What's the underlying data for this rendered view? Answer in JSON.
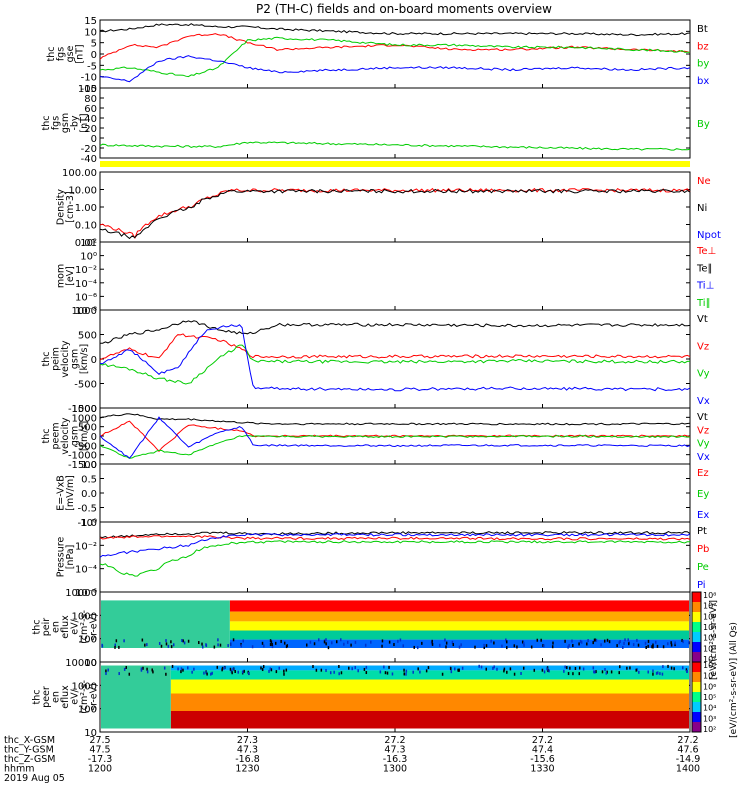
{
  "title": "P2 (TH-C) fields and on-board moments overview",
  "colors": {
    "black": "#000000",
    "red": "#ff0000",
    "green": "#00cc00",
    "blue": "#0000ff",
    "yellow": "#ffff00"
  },
  "chart_data": {
    "type": "line",
    "x_range": [
      "2019-08-05 12:00",
      "2019-08-05 14:00"
    ],
    "panels": [
      {
        "id": "fgs-gse",
        "ylabel": [
          "thc",
          "fgs",
          "gse",
          "[nT]"
        ],
        "yticks": [
          "15",
          "10",
          "5",
          "0",
          "-5",
          "-10",
          "-15"
        ],
        "ylim": [
          -15,
          15
        ],
        "legend": [
          {
            "name": "Bt",
            "color": "black"
          },
          {
            "name": "bz",
            "color": "red"
          },
          {
            "name": "by",
            "color": "green"
          },
          {
            "name": "bx",
            "color": "blue"
          }
        ],
        "series": [
          {
            "name": "Bt",
            "color": "black",
            "x": [
              0,
              0.05,
              0.1,
              0.15,
              0.2,
              0.25,
              0.3,
              0.4,
              0.5,
              0.6,
              0.7,
              0.8,
              0.9,
              1
            ],
            "y": [
              10,
              11,
              13,
              13,
              12,
              12,
              11,
              10,
              9,
              9,
              9,
              9,
              8.5,
              9
            ]
          },
          {
            "name": "bz",
            "color": "red",
            "x": [
              0,
              0.05,
              0.1,
              0.15,
              0.2,
              0.25,
              0.3,
              0.4,
              0.5,
              0.6,
              0.7,
              0.8,
              0.9,
              1
            ],
            "y": [
              -2,
              4,
              3,
              8,
              9,
              5,
              2,
              3,
              4,
              2,
              2,
              3,
              2,
              1
            ]
          },
          {
            "name": "by",
            "color": "green",
            "x": [
              0,
              0.05,
              0.1,
              0.15,
              0.2,
              0.25,
              0.3,
              0.4,
              0.5,
              0.6,
              0.7,
              0.8,
              0.9,
              1
            ],
            "y": [
              -7,
              -6,
              -8,
              -10,
              -6,
              6,
              7,
              6,
              4,
              4,
              3,
              3,
              2,
              1
            ]
          },
          {
            "name": "bx",
            "color": "blue",
            "x": [
              0,
              0.05,
              0.1,
              0.15,
              0.2,
              0.25,
              0.3,
              0.4,
              0.5,
              0.6,
              0.7,
              0.8,
              0.9,
              1
            ],
            "y": [
              -10,
              -12,
              -3,
              -1,
              -3,
              -6,
              -8,
              -7,
              -6,
              -6,
              -7,
              -6,
              -7,
              -6
            ]
          }
        ]
      },
      {
        "id": "fgs-gsm-by",
        "ylabel": [
          "thc",
          "fgs",
          "gsm",
          "-by",
          "[nT]"
        ],
        "yticks": [
          "100",
          "80",
          "60",
          "40",
          "20",
          "0",
          "-20",
          "-40"
        ],
        "ylim": [
          -60,
          100
        ],
        "legend": [
          {
            "name": "By",
            "color": "green"
          }
        ],
        "series": [
          {
            "name": "By",
            "color": "green",
            "x": [
              0,
              0.1,
              0.2,
              0.25,
              0.3,
              0.5,
              0.7,
              0.9,
              1
            ],
            "y": [
              -30,
              -33,
              -34,
              -24,
              -25,
              -30,
              -35,
              -40,
              -40
            ]
          }
        ]
      },
      {
        "id": "density",
        "ylabel": [
          "Density",
          "[cm-3]"
        ],
        "yticks": [
          "100.00",
          "10.00",
          "1.00",
          "0.10",
          "0.01"
        ],
        "log": true,
        "ylim": [
          0.01,
          100
        ],
        "legend": [
          {
            "name": "Ne",
            "color": "red"
          },
          {
            "name": "Ni",
            "color": "black"
          },
          {
            "name": "Npot",
            "color": "blue"
          }
        ],
        "series": [
          {
            "name": "Ne",
            "color": "red",
            "x": [
              0,
              0.03,
              0.06,
              0.08,
              0.12,
              0.16,
              0.2,
              0.22,
              1
            ],
            "y": [
              0.1,
              0.05,
              0.02,
              0.1,
              0.5,
              1.2,
              5,
              9,
              9
            ]
          },
          {
            "name": "Ni",
            "color": "black",
            "x": [
              0,
              0.03,
              0.06,
              0.08,
              0.12,
              0.16,
              0.2,
              0.22,
              1
            ],
            "y": [
              0.05,
              0.03,
              0.015,
              0.06,
              0.4,
              1,
              5,
              8,
              8
            ]
          }
        ]
      },
      {
        "id": "mom-temp",
        "ylabel": [
          "mom",
          "[eV]"
        ],
        "yticks": [
          "10²",
          "10⁰",
          "10⁻²",
          "10⁻⁴",
          "10⁻⁶",
          "10⁻⁸"
        ],
        "legend": [
          {
            "name": "Te⊥",
            "color": "red"
          },
          {
            "name": "Te∥",
            "color": "black"
          },
          {
            "name": "Ti⊥",
            "color": "blue"
          },
          {
            "name": "Ti∥",
            "color": "green"
          }
        ]
      },
      {
        "id": "peim-velocity",
        "ylabel": [
          "thc",
          "peim",
          "velocity",
          "gsm",
          "[km/s]"
        ],
        "yticks": [
          "1000",
          "500",
          "0",
          "-500",
          "-1000"
        ],
        "ylim": [
          -1000,
          1000
        ],
        "legend": [
          {
            "name": "Vt",
            "color": "black"
          },
          {
            "name": "Vz",
            "color": "red"
          },
          {
            "name": "Vy",
            "color": "green"
          },
          {
            "name": "Vx",
            "color": "blue"
          }
        ],
        "series": [
          {
            "name": "Vt",
            "color": "black",
            "x": [
              0,
              0.05,
              0.1,
              0.15,
              0.2,
              0.25,
              0.3,
              0.5,
              0.7,
              1
            ],
            "y": [
              300,
              500,
              600,
              800,
              600,
              500,
              700,
              700,
              680,
              700
            ]
          },
          {
            "name": "Vz",
            "color": "red",
            "x": [
              0,
              0.05,
              0.1,
              0.13,
              0.2,
              0.24,
              0.26,
              0.5,
              0.7,
              1
            ],
            "y": [
              0,
              200,
              0,
              500,
              400,
              200,
              50,
              50,
              60,
              50
            ]
          },
          {
            "name": "Vy",
            "color": "green",
            "x": [
              0,
              0.05,
              0.1,
              0.15,
              0.2,
              0.24,
              0.26,
              0.5,
              0.7,
              1
            ],
            "y": [
              -100,
              -200,
              -400,
              -500,
              0,
              300,
              -50,
              -60,
              -40,
              -60
            ]
          },
          {
            "name": "Vx",
            "color": "blue",
            "x": [
              0,
              0.05,
              0.1,
              0.13,
              0.18,
              0.24,
              0.26,
              0.5,
              0.7,
              1
            ],
            "y": [
              -100,
              200,
              -300,
              -200,
              600,
              700,
              -600,
              -620,
              -600,
              -620
            ]
          }
        ]
      },
      {
        "id": "peem-velocity",
        "ylabel": [
          "thc",
          "peem",
          "velocity",
          "gsm",
          "[km/s]"
        ],
        "yticks": [
          "1500",
          "1000",
          "500",
          "0",
          "-500",
          "-1000",
          "-1500"
        ],
        "ylim": [
          -1500,
          1500
        ],
        "legend": [
          {
            "name": "Vt",
            "color": "black"
          },
          {
            "name": "Vz",
            "color": "red"
          },
          {
            "name": "Vy",
            "color": "green"
          },
          {
            "name": "Vx",
            "color": "blue"
          }
        ],
        "series": [
          {
            "name": "Vt",
            "color": "black",
            "x": [
              0,
              0.05,
              0.1,
              0.15,
              0.2,
              0.25,
              0.3,
              0.5,
              0.7,
              1
            ],
            "y": [
              1000,
              1200,
              900,
              900,
              800,
              700,
              650,
              650,
              640,
              650
            ]
          },
          {
            "name": "Vz",
            "color": "red",
            "x": [
              0,
              0.05,
              0.1,
              0.15,
              0.2,
              0.24,
              0.26,
              0.5,
              0.7,
              1
            ],
            "y": [
              0,
              800,
              -800,
              600,
              400,
              300,
              0,
              0,
              10,
              0
            ]
          },
          {
            "name": "Vy",
            "color": "green",
            "x": [
              0,
              0.05,
              0.1,
              0.15,
              0.2,
              0.24,
              0.26,
              0.5,
              0.7,
              1
            ],
            "y": [
              -500,
              -1200,
              -800,
              -1000,
              -400,
              0,
              -30,
              -40,
              -20,
              -40
            ]
          },
          {
            "name": "Vx",
            "color": "blue",
            "x": [
              0,
              0.05,
              0.1,
              0.15,
              0.2,
              0.24,
              0.26,
              0.5,
              0.7,
              1
            ],
            "y": [
              0,
              -1200,
              1000,
              -600,
              200,
              500,
              -500,
              -520,
              -500,
              -520
            ]
          }
        ]
      },
      {
        "id": "e-field",
        "ylabel": [
          "E=-VxB",
          "[mV/m]"
        ],
        "yticks": [
          "1.0",
          "0.5",
          "0.0",
          "-0.5",
          "-1.0"
        ],
        "ylim": [
          -1,
          1
        ],
        "legend": [
          {
            "name": "Ez",
            "color": "red"
          },
          {
            "name": "Ey",
            "color": "green"
          },
          {
            "name": "Ex",
            "color": "blue"
          }
        ]
      },
      {
        "id": "pressure",
        "ylabel": [
          "Pressure",
          "[nPa]"
        ],
        "yticks": [
          "10⁰",
          "10⁻²",
          "10⁻⁴",
          "10⁻⁶"
        ],
        "log": true,
        "ylim": [
          1e-06,
          1
        ],
        "legend": [
          {
            "name": "Pt",
            "color": "black"
          },
          {
            "name": "Pb",
            "color": "red"
          },
          {
            "name": "Pe",
            "color": "green"
          },
          {
            "name": "Pi",
            "color": "blue"
          }
        ],
        "series": [
          {
            "name": "Pt",
            "color": "black",
            "x": [
              0,
              0.05,
              0.1,
              0.15,
              0.2,
              0.25,
              0.3,
              0.5,
              1
            ],
            "y": [
              0.05,
              0.06,
              0.1,
              0.1,
              0.12,
              0.1,
              0.1,
              0.12,
              0.12
            ]
          },
          {
            "name": "Pb",
            "color": "red",
            "x": [
              0,
              0.05,
              0.1,
              0.15,
              0.2,
              0.25,
              0.3,
              0.5,
              1
            ],
            "y": [
              0.04,
              0.05,
              0.06,
              0.06,
              0.05,
              0.04,
              0.04,
              0.04,
              0.035
            ]
          },
          {
            "name": "Pe",
            "color": "green",
            "x": [
              0,
              0.03,
              0.06,
              0.1,
              0.15,
              0.2,
              0.25,
              1
            ],
            "y": [
              0.0003,
              5e-05,
              2e-05,
              0.0001,
              0.001,
              0.01,
              0.02,
              0.02
            ]
          },
          {
            "name": "Pi",
            "color": "blue",
            "x": [
              0,
              0.03,
              0.06,
              0.1,
              0.15,
              0.2,
              0.25,
              1
            ],
            "y": [
              0.001,
              0.002,
              0.003,
              0.005,
              0.01,
              0.05,
              0.08,
              0.08
            ]
          }
        ]
      },
      {
        "id": "peir-eflux",
        "type": "heatmap",
        "ylabel": [
          "thc",
          "peir",
          "en",
          "eflux",
          "eV/",
          "(cm²-s-",
          "sr-eV)"
        ],
        "yticks": [
          "10000",
          "1000",
          "100",
          "10"
        ],
        "log": true
      },
      {
        "id": "peer-eflux",
        "type": "heatmap",
        "ylabel": [
          "thc",
          "peer",
          "en",
          "eflux",
          "eV/",
          "(cm²-s-",
          "sr-eV)"
        ],
        "yticks": [
          "10000",
          "1000",
          "100",
          "10"
        ],
        "log": true
      }
    ],
    "colorbar": {
      "label": "[eV/(cm²-s-sr-eV)] (All Qs)",
      "label_overlap": "[eV/(cm²-s-sr-eV)]",
      "ticks_top": [
        "10⁸",
        "10⁷",
        "10⁶",
        "10⁵",
        "10⁴",
        "10³",
        "10²"
      ],
      "ticks_bottom": [
        "10⁸",
        "10⁷",
        "10⁶",
        "10⁵",
        "10⁴",
        "10³",
        "10²"
      ]
    },
    "x_axis": {
      "row_labels": [
        "thc_X-GSM",
        "thc_Y-GSM",
        "thc_Z-GSM",
        "hhmm",
        "2019 Aug 05"
      ],
      "columns": [
        {
          "x": "27.5",
          "y": "47.5",
          "z": "-17.3",
          "t": "1200"
        },
        {
          "x": "27.3",
          "y": "47.3",
          "z": "-16.8",
          "t": "1230"
        },
        {
          "x": "27.2",
          "y": "47.3",
          "z": "-16.3",
          "t": "1300"
        },
        {
          "x": "27.2",
          "y": "47.4",
          "z": "-15.6",
          "t": "1330"
        },
        {
          "x": "27.2",
          "y": "47.6",
          "z": "-14.9",
          "t": "1400"
        }
      ]
    }
  }
}
